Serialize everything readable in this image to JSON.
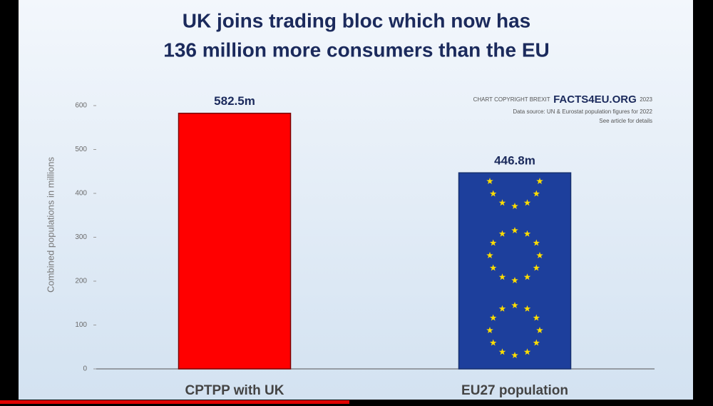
{
  "chart_data": {
    "type": "bar",
    "title": [
      "UK joins trading bloc which now has",
      "136 million more consumers than the EU"
    ],
    "y_axis_label": "Combined populations in millions",
    "categories": [
      "CPTPP with UK",
      "EU27 population"
    ],
    "values": [
      582.5,
      446.8
    ],
    "value_labels": [
      "582.5m",
      "446.8m"
    ],
    "colors": [
      "#ff0000",
      "#1d3f9c"
    ],
    "ylim": [
      0,
      600
    ],
    "yticks": [
      0,
      100,
      200,
      300,
      400,
      500,
      600
    ],
    "annotation": {
      "copyright": "CHART COPYRIGHT BREXIT",
      "brand": "FACTS4EU.ORG",
      "year": "2023",
      "source": "Data source: UN & Eurostat population figures for 2022",
      "details": "See article for details"
    }
  }
}
